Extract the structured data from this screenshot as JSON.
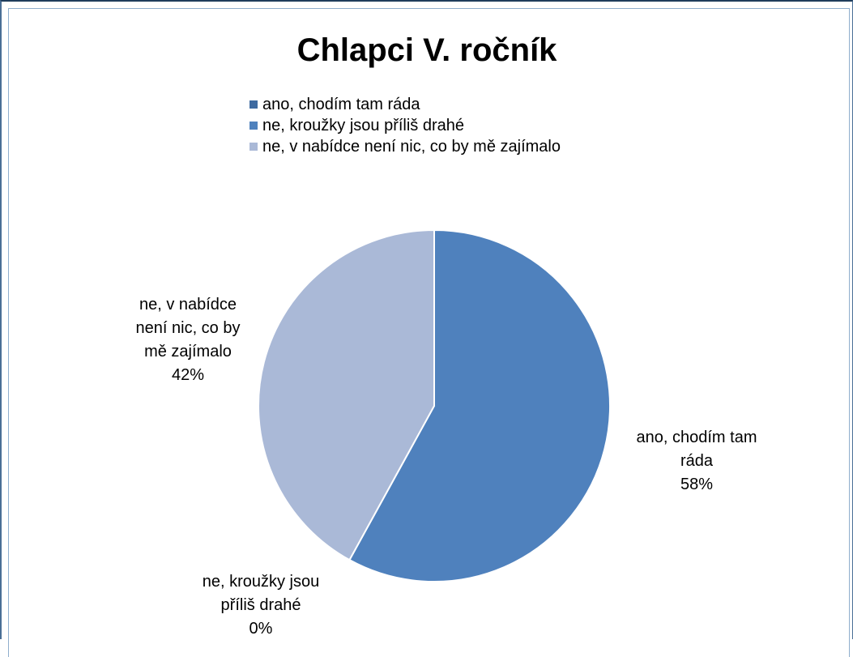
{
  "chart_data": {
    "type": "pie",
    "title": "Chlapci V. ročník",
    "legend_position": "top",
    "categories": [
      "ano, chodím tam ráda",
      "ne, kroužky jsou příliš drahé",
      "ne, v nabídce není nic, co by mě zajímalo"
    ],
    "values": [
      58,
      0,
      42
    ],
    "colors": [
      "#4f81bd",
      "#4f81bd",
      "#aab9d7"
    ],
    "legend_colors": [
      "#3e6aa0",
      "#4f81bd",
      "#aab9d7"
    ],
    "data_labels": [
      {
        "lines": [
          "ano, chodím tam",
          "ráda"
        ],
        "percent": "58%"
      },
      {
        "lines": [
          "ne, kroužky jsou",
          "příliš drahé"
        ],
        "percent": "0%"
      },
      {
        "lines": [
          "ne, v nabídce",
          "není nic, co by",
          "mě zajímalo"
        ],
        "percent": "42%"
      }
    ]
  }
}
